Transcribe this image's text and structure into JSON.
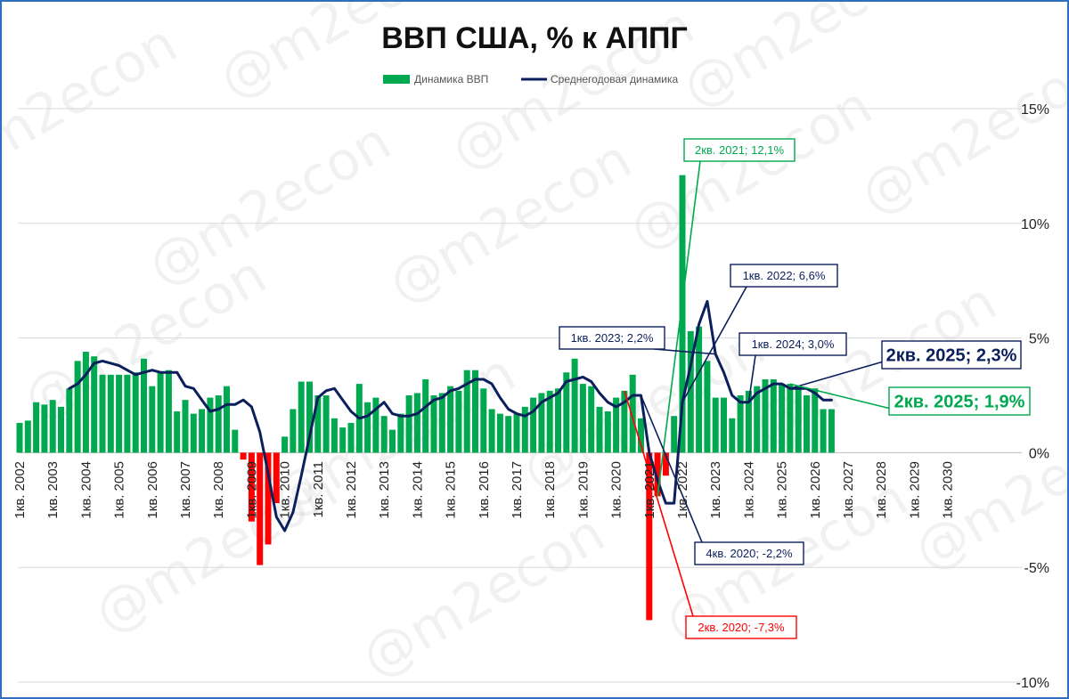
{
  "chart_data": {
    "type": "bar+line",
    "title": "ВВП США, % к АППГ",
    "series": [
      {
        "name": "Динамика ВВП",
        "type": "bar",
        "color": "#00a94f",
        "negative_color": "#ff0000"
      },
      {
        "name": "Среднегодовая динамика",
        "type": "line",
        "color": "#0b1f5c"
      }
    ],
    "ylim": [
      -10,
      15
    ],
    "yticks": [
      {
        "value": 15,
        "label": "15%"
      },
      {
        "value": 10,
        "label": "10%"
      },
      {
        "value": 5,
        "label": "5%"
      },
      {
        "value": 0,
        "label": "0%"
      },
      {
        "value": -5,
        "label": "-5%"
      },
      {
        "value": -10,
        "label": "-10%"
      }
    ],
    "x_tick_labels": [
      "1кв. 2002",
      "1кв. 2003",
      "1кв. 2004",
      "1кв. 2005",
      "1кв. 2006",
      "1кв. 2007",
      "1кв. 2008",
      "1кв. 2009",
      "1кв. 2010",
      "1кв. 2011",
      "1кв. 2012",
      "1кв. 2013",
      "1кв. 2014",
      "1кв. 2015",
      "1кв. 2016",
      "1кв. 2017",
      "1кв. 2018",
      "1кв. 2019",
      "1кв. 2020",
      "1кв. 2021",
      "1кв. 2022",
      "1кв. 2023",
      "1кв. 2024",
      "1кв. 2025",
      "1кв. 2026",
      "1кв. 2027",
      "1кв. 2028",
      "1кв. 2029",
      "1кв. 2030"
    ],
    "gdp_quarterly": [
      1.3,
      1.4,
      2.2,
      2.1,
      2.3,
      2.0,
      2.8,
      4.0,
      4.4,
      4.2,
      3.4,
      3.4,
      3.4,
      3.4,
      3.5,
      4.1,
      2.9,
      3.5,
      3.6,
      1.8,
      2.3,
      1.7,
      1.9,
      2.4,
      2.5,
      2.9,
      1.0,
      -0.3,
      -3.0,
      -4.9,
      -4.0,
      -2.2,
      0.7,
      1.9,
      3.1,
      3.1,
      2.5,
      2.5,
      1.5,
      1.1,
      1.3,
      3.0,
      2.2,
      2.4,
      1.6,
      1.0,
      1.7,
      2.5,
      2.6,
      3.2,
      2.5,
      2.6,
      2.9,
      2.7,
      3.6,
      3.6,
      2.8,
      1.9,
      1.7,
      1.6,
      1.7,
      2.0,
      2.4,
      2.6,
      2.7,
      2.8,
      3.5,
      4.1,
      3.0,
      2.9,
      2.0,
      1.8,
      2.4,
      2.7,
      3.4,
      1.5,
      -7.3,
      -1.9,
      -1.0,
      1.6,
      12.1,
      5.3,
      5.5,
      4.0,
      2.4,
      2.4,
      1.5,
      2.5,
      2.7,
      2.9,
      3.2,
      3.2,
      3.0,
      3.0,
      2.9,
      2.5,
      2.8,
      1.9,
      1.9
    ],
    "avg_annual": [
      null,
      null,
      null,
      null,
      null,
      null,
      2.8,
      3.0,
      3.4,
      3.9,
      4.0,
      3.9,
      3.8,
      3.6,
      3.4,
      3.5,
      3.6,
      3.5,
      3.5,
      3.5,
      2.9,
      2.8,
      2.3,
      1.8,
      1.9,
      2.1,
      2.1,
      2.3,
      2.0,
      0.9,
      -0.9,
      -2.8,
      -3.4,
      -2.6,
      -1.0,
      0.7,
      2.4,
      2.7,
      2.8,
      2.3,
      1.8,
      1.5,
      1.6,
      1.9,
      2.2,
      1.7,
      1.6,
      1.6,
      1.7,
      2.0,
      2.3,
      2.4,
      2.7,
      2.8,
      3.0,
      3.2,
      3.2,
      3.0,
      2.4,
      1.9,
      1.7,
      1.6,
      1.8,
      2.2,
      2.4,
      2.6,
      3.1,
      3.2,
      3.3,
      3.1,
      2.6,
      2.2,
      2.0,
      2.2,
      2.5,
      2.5,
      0.0,
      -1.2,
      -2.2,
      -2.2,
      2.2,
      3.8,
      5.6,
      6.6,
      4.3,
      3.5,
      2.5,
      2.2,
      2.2,
      2.6,
      2.8,
      3.0,
      3.0,
      2.8,
      2.8,
      2.8,
      2.6,
      2.3,
      2.3
    ],
    "annotations": [
      {
        "text": "2кв. 2021; 12,1%",
        "index": 77,
        "series": "gdp",
        "color": "#00a94f"
      },
      {
        "text": "1кв. 2022; 6,6%",
        "index": 80,
        "series": "avg",
        "color": "#0b1f5c"
      },
      {
        "text": "1кв. 2023; 2,2%",
        "index": 84,
        "series": "avg",
        "color": "#0b1f5c"
      },
      {
        "text": "1кв. 2024; 3,0%",
        "index": 88,
        "series": "avg",
        "color": "#0b1f5c"
      },
      {
        "text": "2кв. 2025; 2,3%",
        "index": 93,
        "series": "avg",
        "color": "#0b1f5c"
      },
      {
        "text": "2кв. 2025; 1,9%",
        "index": 93,
        "series": "gdp",
        "color": "#00a94f"
      },
      {
        "text": "4кв. 2020; -2,2%",
        "index": 75,
        "series": "avg",
        "color": "#0b1f5c"
      },
      {
        "text": "2кв. 2020; -7,3%",
        "index": 73,
        "series": "gdp",
        "color": "#ff0000"
      }
    ],
    "grid": true,
    "legend": "top-center",
    "watermark": "@m2econ"
  }
}
